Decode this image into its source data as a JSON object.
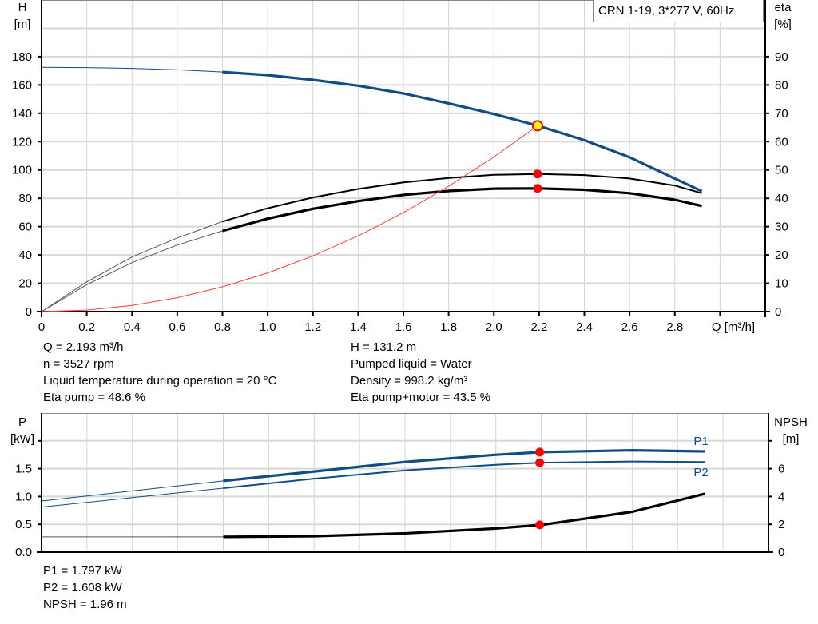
{
  "chart_data": [
    {
      "type": "line",
      "title": "CRN 1-19, 3*277 V, 60Hz",
      "xlabel": "Q [m³/h]",
      "ylabel_lines": [
        "H",
        "[m]"
      ],
      "y2label_lines": [
        "eta",
        "[%]"
      ],
      "xlim": [
        0,
        3.2
      ],
      "ylim": [
        0,
        220
      ],
      "y2lim": [
        0,
        110
      ],
      "xticks": [
        "0",
        "0.2",
        "0.4",
        "0.6",
        "0.8",
        "1.0",
        "1.2",
        "1.4",
        "1.6",
        "1.8",
        "2.0",
        "2.2",
        "2.4",
        "2.6",
        "2.8"
      ],
      "yticks": [
        "0",
        "20",
        "40",
        "60",
        "80",
        "100",
        "120",
        "140",
        "160",
        "180"
      ],
      "y2ticks": [
        "0",
        "10",
        "20",
        "30",
        "40",
        "50",
        "60",
        "70",
        "80",
        "90"
      ],
      "grid": true,
      "series": [
        {
          "id": "H",
          "axis": "left",
          "color": "#0f4c8a",
          "x": [
            0,
            0.2,
            0.4,
            0.6,
            0.8,
            1.0,
            1.2,
            1.4,
            1.6,
            1.8,
            2.0,
            2.2,
            2.4,
            2.6,
            2.8,
            2.92
          ],
          "y": [
            172.5,
            172.3,
            171.7,
            170.7,
            169.2,
            167,
            163.6,
            159.5,
            154,
            147,
            139.5,
            131,
            121,
            109,
            94,
            85
          ]
        },
        {
          "id": "eta_pump",
          "axis": "right",
          "color": "#000000",
          "x": [
            0,
            0.2,
            0.4,
            0.6,
            0.8,
            1.0,
            1.2,
            1.4,
            1.6,
            1.8,
            2.0,
            2.2,
            2.4,
            2.6,
            2.8,
            2.92
          ],
          "y": [
            0,
            10.5,
            19.3,
            26,
            31.8,
            36.5,
            40.3,
            43.3,
            45.6,
            47.2,
            48.3,
            48.6,
            48.2,
            47,
            44.5,
            41.8
          ]
        },
        {
          "id": "eta_pump_motor",
          "axis": "right",
          "color": "#000000",
          "x": [
            0,
            0.2,
            0.4,
            0.6,
            0.8,
            1.0,
            1.2,
            1.4,
            1.6,
            1.8,
            2.0,
            2.2,
            2.4,
            2.6,
            2.8,
            2.92
          ],
          "y": [
            0,
            9.5,
            17.3,
            23.5,
            28.5,
            32.8,
            36.3,
            39,
            41.2,
            42.6,
            43.4,
            43.5,
            43,
            41.8,
            39.5,
            37.3
          ]
        },
        {
          "id": "system_curve",
          "axis": "left",
          "color": "#ff3b3b",
          "x": [
            0,
            0.2,
            0.4,
            0.6,
            0.8,
            1.0,
            1.2,
            1.4,
            1.6,
            1.8,
            2.0,
            2.193
          ],
          "y": [
            0,
            1.1,
            4.4,
            9.8,
            17.5,
            27.3,
            39.3,
            53.5,
            69.9,
            88.5,
            109.2,
            131.2
          ]
        }
      ],
      "duty_points": [
        {
          "axis": "left",
          "x": 2.193,
          "y": 131.2,
          "color": "#ffff00"
        },
        {
          "axis": "right",
          "x": 2.193,
          "y": 48.6,
          "color": "#ff0000"
        },
        {
          "axis": "right",
          "x": 2.193,
          "y": 43.5,
          "color": "#ff0000"
        }
      ]
    },
    {
      "type": "line",
      "ylabel_lines": [
        "P",
        "[kW]"
      ],
      "y2label_lines": [
        "NPSH",
        "[m]"
      ],
      "xlim": [
        0,
        3.2
      ],
      "ylim": [
        0,
        2.5
      ],
      "y2lim": [
        0,
        10
      ],
      "yticks": [
        "0.0",
        "0.5",
        "1.0",
        "1.5",
        ""
      ],
      "y2ticks": [
        "0",
        "2",
        "4",
        "6",
        ""
      ],
      "grid": true,
      "series": [
        {
          "id": "P1",
          "name": "P1",
          "axis": "left",
          "color": "#0f4c8a",
          "x": [
            0,
            0.4,
            0.8,
            1.2,
            1.6,
            2.0,
            2.2,
            2.6,
            2.92
          ],
          "y": [
            0.92,
            1.1,
            1.28,
            1.45,
            1.62,
            1.75,
            1.797,
            1.83,
            1.81
          ]
        },
        {
          "id": "P2",
          "name": "P2",
          "axis": "left",
          "color": "#0f4c8a",
          "x": [
            0,
            0.4,
            0.8,
            1.2,
            1.6,
            2.0,
            2.2,
            2.6,
            2.92
          ],
          "y": [
            0.81,
            0.98,
            1.15,
            1.32,
            1.47,
            1.57,
            1.608,
            1.63,
            1.62
          ]
        },
        {
          "id": "NPSH",
          "axis": "right",
          "color": "#000000",
          "x": [
            0,
            0.4,
            0.8,
            1.2,
            1.6,
            2.0,
            2.2,
            2.6,
            2.92
          ],
          "y": [
            1.1,
            1.1,
            1.1,
            1.15,
            1.35,
            1.7,
            1.96,
            2.9,
            4.2
          ]
        }
      ],
      "duty_points": [
        {
          "axis": "left",
          "x": 2.193,
          "y": 1.797,
          "color": "#ff0000"
        },
        {
          "axis": "left",
          "x": 2.193,
          "y": 1.608,
          "color": "#ff0000"
        },
        {
          "axis": "right",
          "x": 2.193,
          "y": 1.96,
          "color": "#ff0000"
        }
      ]
    }
  ],
  "info": {
    "left": [
      "Q = 2.193 m³/h",
      "n = 3527 rpm",
      "Liquid temperature during operation = 20 °C",
      "Eta pump = 48.6 %"
    ],
    "right": [
      "H = 131.2 m",
      "Pumped liquid = Water",
      "Density = 998.2 kg/m³",
      "Eta pump+motor = 43.5 %"
    ],
    "bottom": [
      "P1 = 1.797 kW",
      "P2 = 1.608 kW",
      "NPSH = 1.96 m"
    ]
  }
}
